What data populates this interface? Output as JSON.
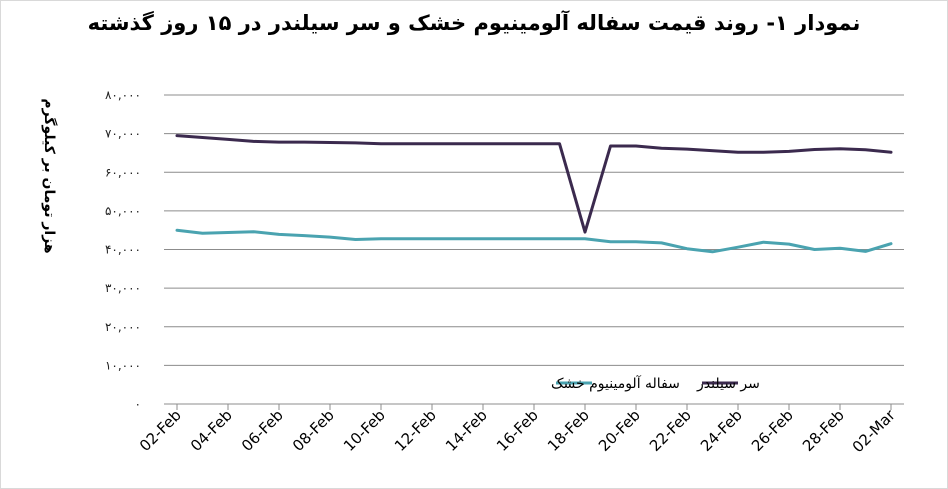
{
  "chart_data": {
    "type": "line",
    "title": "نمودار ۱- روند قیمت سفاله آلومینیوم خشک و سر سیلندر در ۱۵ روز گذشته",
    "ylabel": "هزار تومان بر کیلوگرم",
    "xlabel": "",
    "ylim": [
      0,
      80000
    ],
    "grid": true,
    "legend_position": "bottom-inside",
    "x_ticks": [
      "02-Feb",
      "04-Feb",
      "06-Feb",
      "08-Feb",
      "10-Feb",
      "12-Feb",
      "14-Feb",
      "16-Feb",
      "18-Feb",
      "20-Feb",
      "22-Feb",
      "24-Feb",
      "26-Feb",
      "28-Feb",
      "02-Mar"
    ],
    "y_ticks": [
      {
        "value": 0,
        "label": "۰"
      },
      {
        "value": 10000,
        "label": "۱۰,۰۰۰"
      },
      {
        "value": 20000,
        "label": "۲۰,۰۰۰"
      },
      {
        "value": 30000,
        "label": "۳۰,۰۰۰"
      },
      {
        "value": 40000,
        "label": "۴۰,۰۰۰"
      },
      {
        "value": 50000,
        "label": "۵۰,۰۰۰"
      },
      {
        "value": 60000,
        "label": "۶۰,۰۰۰"
      },
      {
        "value": 70000,
        "label": "۷۰,۰۰۰"
      },
      {
        "value": 80000,
        "label": "۸۰,۰۰۰"
      }
    ],
    "series": [
      {
        "name": "سر سیلندر",
        "color": "#3b2a4e",
        "points": [
          [
            "02-Feb",
            69500
          ],
          [
            "04-Feb",
            68500
          ],
          [
            "05-Feb",
            68000
          ],
          [
            "06-Feb",
            67800
          ],
          [
            "07-Feb",
            67800
          ],
          [
            "09-Feb",
            67600
          ],
          [
            "10-Feb",
            67400
          ],
          [
            "12-Feb",
            67400
          ],
          [
            "14-Feb",
            67400
          ],
          [
            "16-Feb",
            67400
          ],
          [
            "17-Feb",
            67400
          ],
          [
            "18-Feb",
            44500
          ],
          [
            "19-Feb",
            66800
          ],
          [
            "20-Feb",
            66800
          ],
          [
            "21-Feb",
            66200
          ],
          [
            "22-Feb",
            66000
          ],
          [
            "24-Feb",
            65200
          ],
          [
            "25-Feb",
            65200
          ],
          [
            "26-Feb",
            65400
          ],
          [
            "27-Feb",
            65900
          ],
          [
            "28-Feb",
            66100
          ],
          [
            "01-Mar",
            65800
          ],
          [
            "02-Mar",
            65200
          ]
        ]
      },
      {
        "name": "سفاله آلومینیوم خشک",
        "color": "#4aa3b0",
        "points": [
          [
            "02-Feb",
            45000
          ],
          [
            "03-Feb",
            44200
          ],
          [
            "04-Feb",
            44400
          ],
          [
            "05-Feb",
            44600
          ],
          [
            "06-Feb",
            43900
          ],
          [
            "07-Feb",
            43600
          ],
          [
            "08-Feb",
            43200
          ],
          [
            "09-Feb",
            42600
          ],
          [
            "10-Feb",
            42800
          ],
          [
            "12-Feb",
            42800
          ],
          [
            "14-Feb",
            42800
          ],
          [
            "16-Feb",
            42800
          ],
          [
            "18-Feb",
            42800
          ],
          [
            "19-Feb",
            42000
          ],
          [
            "20-Feb",
            42000
          ],
          [
            "21-Feb",
            41700
          ],
          [
            "22-Feb",
            40200
          ],
          [
            "23-Feb",
            39400
          ],
          [
            "24-Feb",
            40600
          ],
          [
            "25-Feb",
            41900
          ],
          [
            "26-Feb",
            41400
          ],
          [
            "27-Feb",
            40000
          ],
          [
            "28-Feb",
            40300
          ],
          [
            "01-Mar",
            39500
          ],
          [
            "02-Mar",
            41500
          ]
        ]
      }
    ]
  }
}
